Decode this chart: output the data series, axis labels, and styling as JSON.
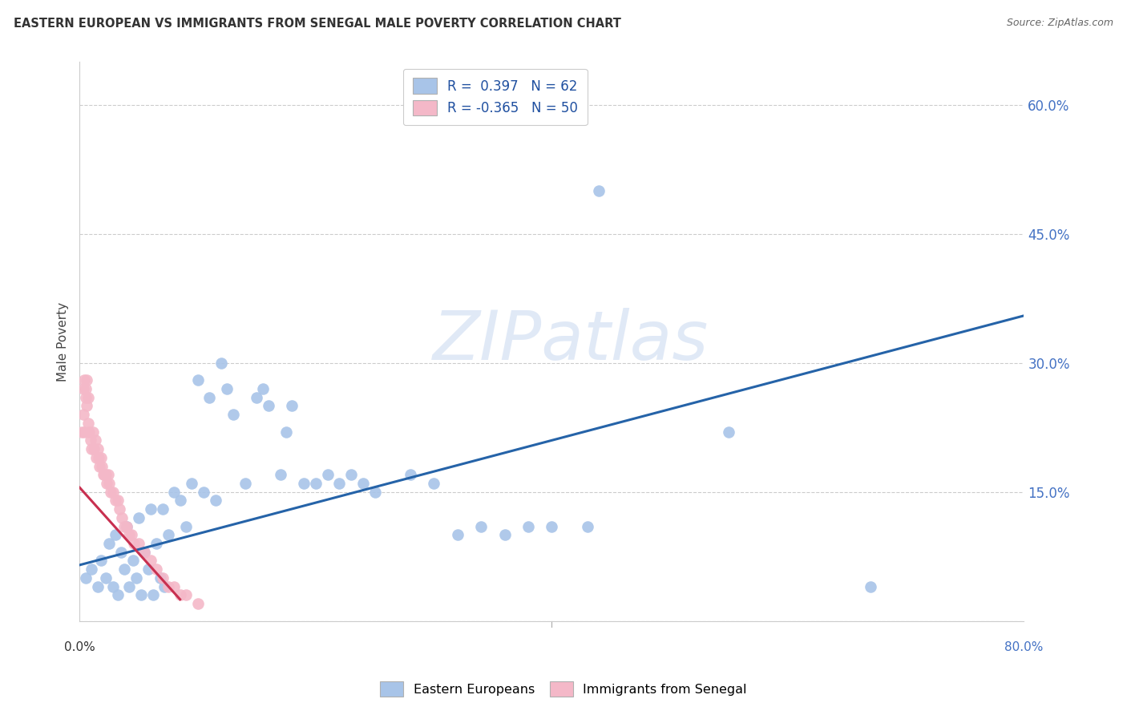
{
  "title": "EASTERN EUROPEAN VS IMMIGRANTS FROM SENEGAL MALE POVERTY CORRELATION CHART",
  "source": "Source: ZipAtlas.com",
  "ylabel": "Male Poverty",
  "xlim": [
    0.0,
    0.8
  ],
  "ylim": [
    0.0,
    0.65
  ],
  "yticks": [
    0.0,
    0.15,
    0.3,
    0.45,
    0.6
  ],
  "ytick_labels": [
    "",
    "15.0%",
    "30.0%",
    "45.0%",
    "60.0%"
  ],
  "blue_color": "#a8c4e8",
  "pink_color": "#f4b8c8",
  "line_blue_color": "#2563a8",
  "line_pink_color": "#c83050",
  "watermark_text": "ZIPatlas",
  "background_color": "#ffffff",
  "blue_scatter_x": [
    0.005,
    0.01,
    0.015,
    0.018,
    0.022,
    0.025,
    0.028,
    0.03,
    0.032,
    0.035,
    0.038,
    0.04,
    0.042,
    0.045,
    0.048,
    0.05,
    0.052,
    0.055,
    0.058,
    0.06,
    0.062,
    0.065,
    0.068,
    0.07,
    0.072,
    0.075,
    0.08,
    0.085,
    0.09,
    0.095,
    0.1,
    0.105,
    0.11,
    0.115,
    0.12,
    0.125,
    0.13,
    0.14,
    0.15,
    0.155,
    0.16,
    0.17,
    0.175,
    0.18,
    0.19,
    0.2,
    0.21,
    0.22,
    0.23,
    0.24,
    0.25,
    0.28,
    0.3,
    0.32,
    0.34,
    0.36,
    0.38,
    0.4,
    0.43,
    0.44,
    0.55,
    0.67
  ],
  "blue_scatter_y": [
    0.05,
    0.06,
    0.04,
    0.07,
    0.05,
    0.09,
    0.04,
    0.1,
    0.03,
    0.08,
    0.06,
    0.11,
    0.04,
    0.07,
    0.05,
    0.12,
    0.03,
    0.08,
    0.06,
    0.13,
    0.03,
    0.09,
    0.05,
    0.13,
    0.04,
    0.1,
    0.15,
    0.14,
    0.11,
    0.16,
    0.28,
    0.15,
    0.26,
    0.14,
    0.3,
    0.27,
    0.24,
    0.16,
    0.26,
    0.27,
    0.25,
    0.17,
    0.22,
    0.25,
    0.16,
    0.16,
    0.17,
    0.16,
    0.17,
    0.16,
    0.15,
    0.17,
    0.16,
    0.1,
    0.11,
    0.1,
    0.11,
    0.11,
    0.11,
    0.5,
    0.22,
    0.04
  ],
  "pink_scatter_x": [
    0.002,
    0.003,
    0.004,
    0.005,
    0.006,
    0.007,
    0.008,
    0.009,
    0.01,
    0.011,
    0.012,
    0.013,
    0.014,
    0.015,
    0.016,
    0.017,
    0.018,
    0.019,
    0.02,
    0.021,
    0.022,
    0.023,
    0.024,
    0.025,
    0.026,
    0.028,
    0.03,
    0.032,
    0.034,
    0.036,
    0.038,
    0.04,
    0.042,
    0.044,
    0.046,
    0.05,
    0.055,
    0.06,
    0.065,
    0.07,
    0.075,
    0.08,
    0.085,
    0.09,
    0.1,
    0.003,
    0.004,
    0.005,
    0.006,
    0.007
  ],
  "pink_scatter_y": [
    0.22,
    0.24,
    0.22,
    0.26,
    0.25,
    0.23,
    0.22,
    0.21,
    0.2,
    0.22,
    0.2,
    0.21,
    0.19,
    0.2,
    0.19,
    0.18,
    0.19,
    0.18,
    0.17,
    0.17,
    0.17,
    0.16,
    0.17,
    0.16,
    0.15,
    0.15,
    0.14,
    0.14,
    0.13,
    0.12,
    0.11,
    0.11,
    0.1,
    0.1,
    0.09,
    0.09,
    0.08,
    0.07,
    0.06,
    0.05,
    0.04,
    0.04,
    0.03,
    0.03,
    0.02,
    0.27,
    0.28,
    0.27,
    0.28,
    0.26
  ],
  "blue_line_x": [
    0.0,
    0.8
  ],
  "blue_line_y": [
    0.065,
    0.355
  ],
  "pink_line_x": [
    0.0,
    0.085
  ],
  "pink_line_y": [
    0.155,
    0.025
  ]
}
